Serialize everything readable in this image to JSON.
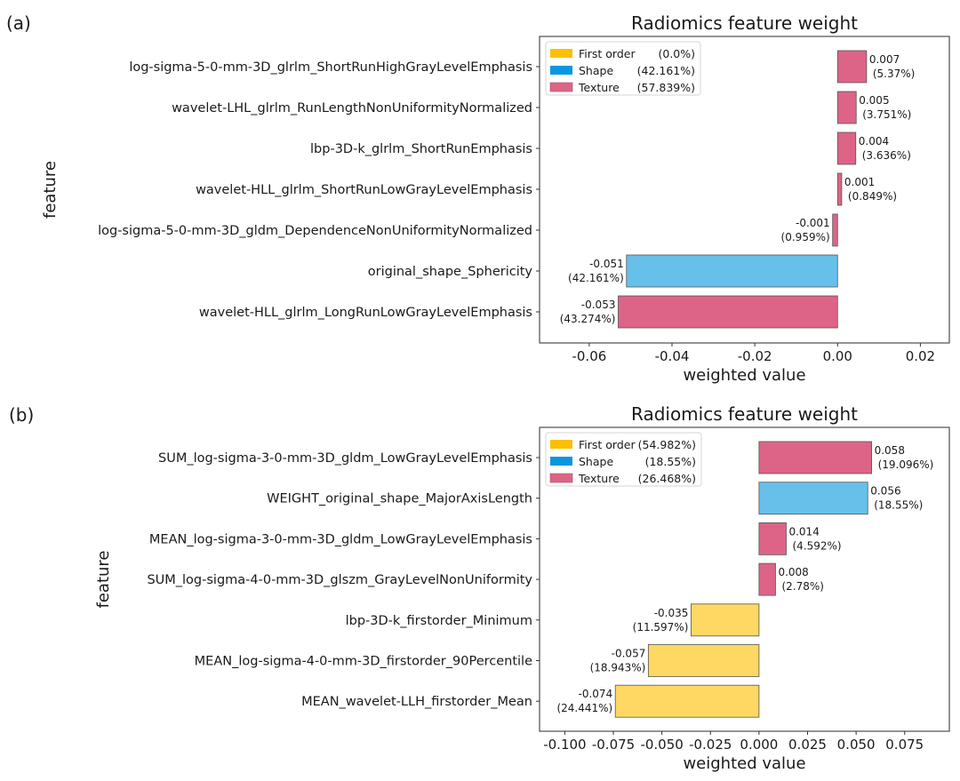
{
  "chart_data": [
    {
      "panel_label": "(a)",
      "type": "bar",
      "orientation": "horizontal",
      "title": "Radiomics feature weight",
      "xlabel": "weighted value",
      "ylabel": "feature",
      "xlim": [
        -0.072,
        0.027
      ],
      "xticks": [
        -0.06,
        -0.04,
        -0.02,
        0.0,
        0.02
      ],
      "xtick_labels": [
        "-0.06",
        "-0.04",
        "-0.02",
        "0.00",
        "0.02"
      ],
      "grid": false,
      "legend_position": "top-left",
      "legend": [
        {
          "name": "First order",
          "pct": "(0.0%)",
          "color": "#fcbf00"
        },
        {
          "name": "Shape",
          "pct": "(42.161%)",
          "color": "#0a97e0"
        },
        {
          "name": "Texture",
          "pct": "(57.839%)",
          "color": "#dc6485"
        }
      ],
      "bars": [
        {
          "feature": "log-sigma-5-0-mm-3D_glrlm_ShortRunHighGrayLevelEmphasis",
          "value": 0.007,
          "value_label": "0.007",
          "pct_label": "(5.37%)",
          "category": "Texture"
        },
        {
          "feature": "wavelet-LHL_glrlm_RunLengthNonUniformityNormalized",
          "value": 0.0045,
          "value_label": "0.005",
          "pct_label": "(3.751%)",
          "category": "Texture"
        },
        {
          "feature": "lbp-3D-k_glrlm_ShortRunEmphasis",
          "value": 0.0044,
          "value_label": "0.004",
          "pct_label": "(3.636%)",
          "category": "Texture"
        },
        {
          "feature": "wavelet-HLL_glrlm_ShortRunLowGrayLevelEmphasis",
          "value": 0.001,
          "value_label": "0.001",
          "pct_label": "(0.849%)",
          "category": "Texture"
        },
        {
          "feature": "log-sigma-5-0-mm-3D_gldm_DependenceNonUniformityNormalized",
          "value": -0.0012,
          "value_label": "-0.001",
          "pct_label": "(0.959%)",
          "category": "Texture"
        },
        {
          "feature": "original_shape_Sphericity",
          "value": -0.051,
          "value_label": "-0.051",
          "pct_label": "(42.161%)",
          "category": "Shape"
        },
        {
          "feature": "wavelet-HLL_glrlm_LongRunLowGrayLevelEmphasis",
          "value": -0.053,
          "value_label": "-0.053",
          "pct_label": "(43.274%)",
          "category": "Texture"
        }
      ]
    },
    {
      "panel_label": "(b)",
      "type": "bar",
      "orientation": "horizontal",
      "title": "Radiomics feature weight",
      "xlabel": "weighted value",
      "ylabel": "feature",
      "xlim": [
        -0.113,
        0.098
      ],
      "xticks": [
        -0.1,
        -0.075,
        -0.05,
        -0.025,
        0.0,
        0.025,
        0.05,
        0.075
      ],
      "xtick_labels": [
        "-0.100",
        "-0.075",
        "-0.050",
        "-0.025",
        "0.000",
        "0.025",
        "0.050",
        "0.075"
      ],
      "grid": false,
      "legend_position": "top-left",
      "legend": [
        {
          "name": "First order",
          "pct": "(54.982%)",
          "color": "#fcbf00"
        },
        {
          "name": "Shape",
          "pct": "(18.55%)",
          "color": "#0a97e0"
        },
        {
          "name": "Texture",
          "pct": "(26.468%)",
          "color": "#dc6485"
        }
      ],
      "bars": [
        {
          "feature": "SUM_log-sigma-3-0-mm-3D_gldm_LowGrayLevelEmphasis",
          "value": 0.058,
          "value_label": "0.058",
          "pct_label": "(19.096%)",
          "category": "Texture"
        },
        {
          "feature": "WEIGHT_original_shape_MajorAxisLength",
          "value": 0.056,
          "value_label": "0.056",
          "pct_label": "(18.55%)",
          "category": "Shape"
        },
        {
          "feature": "MEAN_log-sigma-3-0-mm-3D_gldm_LowGrayLevelEmphasis",
          "value": 0.014,
          "value_label": "0.014",
          "pct_label": "(4.592%)",
          "category": "Texture"
        },
        {
          "feature": "SUM_log-sigma-4-0-mm-3D_glszm_GrayLevelNonUniformity",
          "value": 0.0085,
          "value_label": "0.008",
          "pct_label": "(2.78%)",
          "category": "Texture"
        },
        {
          "feature": "lbp-3D-k_firstorder_Minimum",
          "value": -0.035,
          "value_label": "-0.035",
          "pct_label": "(11.597%)",
          "category": "First order"
        },
        {
          "feature": "MEAN_log-sigma-4-0-mm-3D_firstorder_90Percentile",
          "value": -0.057,
          "value_label": "-0.057",
          "pct_label": "(18.943%)",
          "category": "First order"
        },
        {
          "feature": "MEAN_wavelet-LLH_firstorder_Mean",
          "value": -0.074,
          "value_label": "-0.074",
          "pct_label": "(24.441%)",
          "category": "First order"
        }
      ]
    }
  ],
  "bar_colors": {
    "First order": "#fed862",
    "Shape": "#66c0ea",
    "Texture": "#dd6487"
  }
}
